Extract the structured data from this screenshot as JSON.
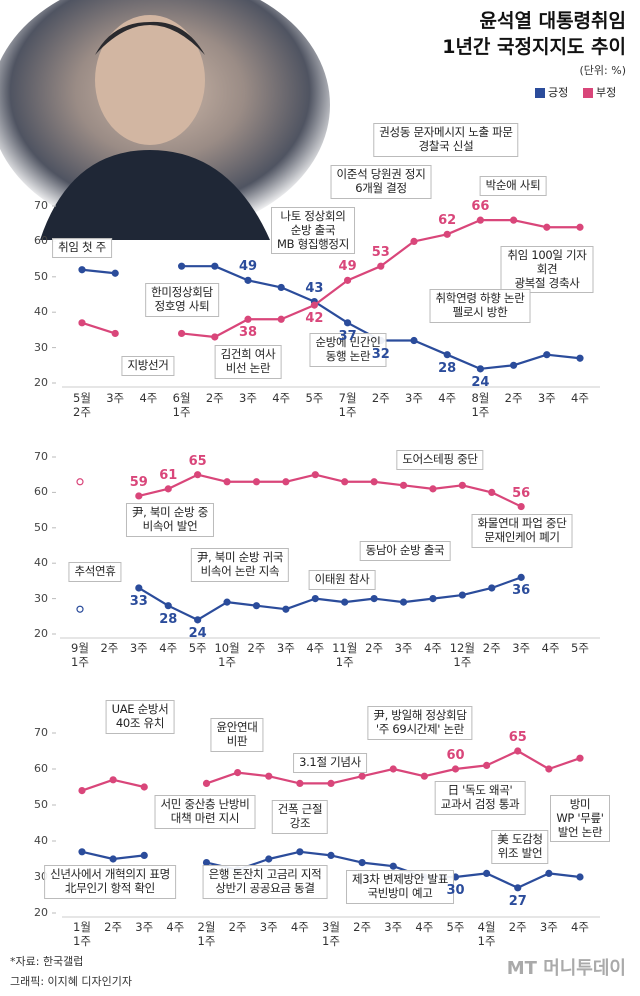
{
  "header": {
    "title": [
      "윤석열 대통령취임",
      "1년간 국정지지도 추이"
    ],
    "unit": "(단위: %)"
  },
  "footer": {
    "source": "*자료: 한국갤럽",
    "credit": "그래픽: 이지혜 디자인기자",
    "logo": "MT 머니투데이"
  },
  "chart_data": [
    {
      "type": "line",
      "categories": [
        "5월\n2주",
        "3주",
        "4주",
        "6월\n1주",
        "2주",
        "3주",
        "4주",
        "5주",
        "7월\n1주",
        "2주",
        "3주",
        "4주",
        "8월\n1주",
        "2주",
        "3주",
        "4주"
      ],
      "ylim": [
        20,
        70
      ],
      "yticks": [
        20,
        30,
        40,
        50,
        60,
        70
      ],
      "series": [
        {
          "name": "긍정",
          "color": "#2b4c9b",
          "values": [
            52,
            51,
            null,
            53,
            53,
            49,
            47,
            43,
            37,
            32,
            32,
            28,
            24,
            25,
            28,
            27
          ],
          "value_labels": [
            null,
            null,
            null,
            null,
            null,
            "49",
            null,
            "43",
            "37",
            "32",
            null,
            "28",
            "24",
            null,
            null,
            null
          ]
        },
        {
          "name": "부정",
          "color": "#d9467a",
          "values": [
            37,
            34,
            null,
            34,
            33,
            38,
            38,
            42,
            49,
            53,
            60,
            62,
            66,
            66,
            64,
            64
          ],
          "value_labels": [
            null,
            null,
            null,
            null,
            null,
            "38",
            null,
            "42",
            "49",
            "53",
            null,
            "62",
            "66",
            null,
            null,
            null
          ]
        }
      ],
      "annotations": [
        "취임 첫 주",
        "지방선거",
        "한미정상회담\n정호영 사퇴",
        "김건희 여사\n비선 논란",
        "나토 정상회의\n순방 출국\nMB 형집행정지",
        "순방에 민간인\n동행 논란",
        "이준석 당원권 정지\n6개월 결정",
        "권성동 문자메시지 노출 파문\n경찰국 신설",
        "박순애 사퇴",
        "취임 100일 기자회견\n광복절 경축사",
        "취학연령 하향 논란\n펠로시 방한"
      ]
    },
    {
      "type": "line",
      "categories": [
        "9월\n1주",
        "2주",
        "3주",
        "4주",
        "5주",
        "10월\n1주",
        "2주",
        "3주",
        "4주",
        "11월\n1주",
        "2주",
        "3주",
        "4주",
        "12월\n1주",
        "2주",
        "3주",
        "4주",
        "5주"
      ],
      "ylim": [
        20,
        70
      ],
      "yticks": [
        20,
        30,
        40,
        50,
        60,
        70
      ],
      "series": [
        {
          "color": "#2b4c9b",
          "values": [
            27,
            null,
            33,
            28,
            24,
            29,
            28,
            27,
            30,
            29,
            30,
            29,
            30,
            31,
            33,
            36,
            null,
            null
          ],
          "value_labels": [
            null,
            null,
            "33",
            "28",
            "24",
            null,
            null,
            null,
            null,
            null,
            null,
            null,
            null,
            null,
            null,
            "36",
            null,
            null
          ]
        },
        {
          "color": "#d9467a",
          "values": [
            63,
            null,
            59,
            61,
            65,
            63,
            63,
            63,
            65,
            63,
            63,
            62,
            61,
            62,
            60,
            56,
            null,
            null
          ],
          "value_labels": [
            null,
            null,
            "59",
            "61",
            "65",
            null,
            null,
            null,
            null,
            null,
            null,
            null,
            null,
            null,
            null,
            "56",
            null,
            null
          ]
        }
      ],
      "annotations": [
        "추석연휴",
        "尹, 북미 순방 중\n비속어 발언",
        "尹, 북미 순방 귀국\n비속어 논란 지속",
        "이태원 참사",
        "동남아 순방 출국",
        "도어스테핑 중단",
        "화물연대 파업 중단\n문재인케어 폐기"
      ]
    },
    {
      "type": "line",
      "categories": [
        "1월\n1주",
        "2주",
        "3주",
        "4주",
        "2월\n1주",
        "2주",
        "3주",
        "4주",
        "3월\n1주",
        "2주",
        "3주",
        "4주",
        "5주",
        "4월\n1주",
        "2주",
        "3주",
        "4주"
      ],
      "ylim": [
        20,
        70
      ],
      "yticks": [
        20,
        30,
        40,
        50,
        60,
        70
      ],
      "series": [
        {
          "color": "#2b4c9b",
          "values": [
            37,
            35,
            36,
            null,
            34,
            32,
            35,
            37,
            36,
            34,
            33,
            30,
            30,
            31,
            27,
            31,
            30
          ],
          "value_labels": [
            null,
            null,
            null,
            null,
            null,
            null,
            null,
            null,
            null,
            null,
            null,
            null,
            "30",
            null,
            "27",
            null,
            null
          ]
        },
        {
          "color": "#d9467a",
          "values": [
            54,
            57,
            55,
            null,
            56,
            59,
            58,
            56,
            56,
            58,
            60,
            58,
            60,
            61,
            65,
            60,
            63
          ],
          "value_labels": [
            null,
            null,
            null,
            null,
            null,
            null,
            null,
            null,
            null,
            null,
            null,
            null,
            "60",
            null,
            "65",
            null,
            null
          ]
        }
      ],
      "annotations": [
        "신년사에서 개혁의지 표명\n北무인기 항적 확인",
        "UAE 순방서\n40조 유치",
        "서민 중산층 난방비\n대책 마련 지시",
        "윤안연대\n비판",
        "은행 돈잔치 고금리 지적\n상반기 공공요금 동결",
        "건폭 근절\n강조",
        "3.1절 기념사",
        "尹, 방일해 정상회담\n'주 69시간제' 논란",
        "제3차 변제방안 발표\n국빈방미 예고",
        "日 '독도 왜곡'\n교과서 검정 통과",
        "美 도감청\n위조 발언",
        "방미\nWP '무릎' 발언 논란"
      ]
    }
  ]
}
